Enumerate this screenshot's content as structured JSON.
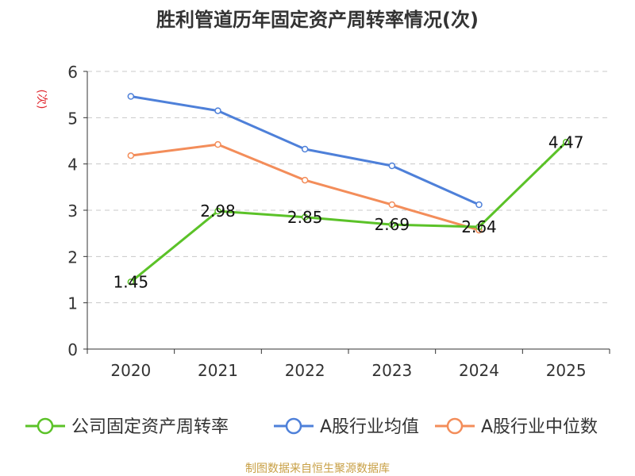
{
  "chart_data": {
    "type": "line",
    "title": "胜利管道历年固定资产周转率情况(次)",
    "ylabel": "(次)",
    "xlabel": "",
    "categories": [
      "2020",
      "2021",
      "2022",
      "2023",
      "2024",
      "2025"
    ],
    "ylim": [
      0,
      6
    ],
    "yticks": [
      0,
      1,
      2,
      3,
      4,
      5,
      6
    ],
    "grid": true,
    "legend_position": "bottom",
    "series": [
      {
        "name": "公司固定资产周转率",
        "color": "#5bc228",
        "values": [
          1.45,
          2.98,
          2.85,
          2.69,
          2.64,
          4.47
        ],
        "show_labels": true
      },
      {
        "name": "A股行业均值",
        "color": "#4e80d9",
        "values": [
          5.46,
          5.15,
          4.32,
          3.96,
          3.12,
          null
        ],
        "show_labels": false
      },
      {
        "name": "A股行业中位数",
        "color": "#f38d5a",
        "values": [
          4.18,
          4.42,
          3.65,
          3.12,
          2.57,
          null
        ],
        "show_labels": false
      }
    ],
    "data_labels": [
      "1.45",
      "2.98",
      "2.85",
      "2.69",
      "2.64",
      "4.47"
    ]
  },
  "source": "制图数据来自恒生聚源数据库"
}
